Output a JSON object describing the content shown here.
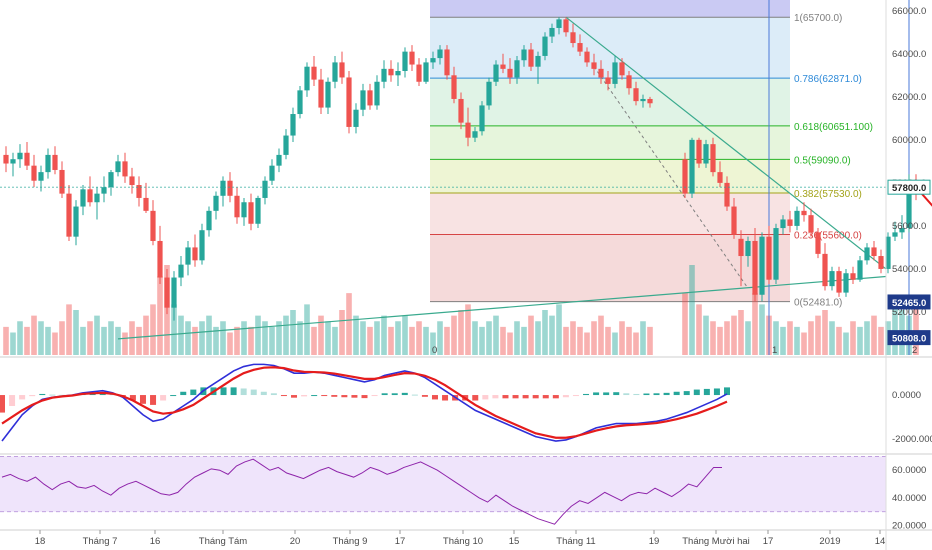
{
  "chart_data": [
    {
      "type": "candlestick",
      "panel": "price",
      "ylim": [
        50000,
        66500
      ],
      "y_ticks": [
        "66000.0",
        "64000.0",
        "62000.0",
        "60000.0",
        "58000.0",
        "56000.0",
        "54000.0",
        "52000.0"
      ],
      "price_tags": [
        {
          "label": "57800.0",
          "value": 57800,
          "style": "light"
        },
        {
          "label": "52465.0",
          "value": 52465,
          "style": "dark"
        },
        {
          "label": "50808.0",
          "value": 50808,
          "style": "dark"
        }
      ],
      "fibonacci": {
        "color_top": "#b3b3ee",
        "levels": [
          {
            "label": "1(65700.0)",
            "value": 65700,
            "color": "#7f7f7f",
            "fill": "#e6e6e6"
          },
          {
            "label": "0.786(62871.0)",
            "value": 62871,
            "color": "#2e8ad8",
            "fill": "#dcecf8"
          },
          {
            "label": "0.618(60651.100)",
            "value": 60651.1,
            "color": "#27b327",
            "fill": "#e0f3e6"
          },
          {
            "label": "0.5(59090.0)",
            "value": 59090,
            "color": "#27b327",
            "fill": "#e6f5dc"
          },
          {
            "label": "0.382(57530.0)",
            "value": 57530,
            "color": "#a3a31a",
            "fill": "#eef5d4"
          },
          {
            "label": "0.236(55600.0)",
            "value": 55600,
            "color": "#d64545",
            "fill": "#f8e3e3"
          },
          {
            "label": "0(52481.0)",
            "value": 52481,
            "color": "#7f7f7f",
            "fill": "#f5dada"
          }
        ]
      },
      "vertical_markers": [
        "1",
        "2",
        "3"
      ],
      "marker_zero_label": "0",
      "candles": [
        [
          59300,
          59700,
          58500,
          58900
        ],
        [
          58900,
          59400,
          58300,
          59100
        ],
        [
          59100,
          59800,
          58700,
          59400
        ],
        [
          59400,
          59900,
          58600,
          58800
        ],
        [
          58800,
          59300,
          57800,
          58100
        ],
        [
          58100,
          58800,
          57600,
          58500
        ],
        [
          58500,
          59600,
          58200,
          59300
        ],
        [
          59300,
          59700,
          58400,
          58600
        ],
        [
          58600,
          59000,
          57300,
          57500
        ],
        [
          57500,
          57900,
          55300,
          55500
        ],
        [
          55500,
          57200,
          55100,
          56900
        ],
        [
          56900,
          57900,
          56500,
          57700
        ],
        [
          57700,
          58300,
          56900,
          57100
        ],
        [
          57100,
          57800,
          56300,
          57500
        ],
        [
          57500,
          58300,
          57100,
          57800
        ],
        [
          57800,
          58600,
          57400,
          58500
        ],
        [
          58500,
          59300,
          58300,
          59000
        ],
        [
          59000,
          59400,
          58000,
          58300
        ],
        [
          58300,
          58700,
          57500,
          57900
        ],
        [
          57900,
          58300,
          56900,
          57300
        ],
        [
          57300,
          58000,
          56600,
          56700
        ],
        [
          56700,
          57200,
          55100,
          55300
        ],
        [
          55300,
          56000,
          53300,
          53600
        ],
        [
          53600,
          54000,
          51900,
          52200
        ],
        [
          52200,
          53900,
          51600,
          53600
        ],
        [
          53600,
          54600,
          53200,
          54200
        ],
        [
          54200,
          55300,
          53700,
          55000
        ],
        [
          55000,
          55600,
          54100,
          54400
        ],
        [
          54400,
          56100,
          54200,
          55800
        ],
        [
          55800,
          56900,
          55500,
          56700
        ],
        [
          56700,
          57600,
          56300,
          57400
        ],
        [
          57400,
          58300,
          56900,
          58100
        ],
        [
          58100,
          58500,
          57100,
          57400
        ],
        [
          57400,
          57800,
          56100,
          56400
        ],
        [
          56400,
          57300,
          56000,
          57100
        ],
        [
          57100,
          57500,
          55800,
          56100
        ],
        [
          56100,
          57400,
          55900,
          57300
        ],
        [
          57300,
          58300,
          57000,
          58100
        ],
        [
          58100,
          59100,
          57900,
          58800
        ],
        [
          58800,
          59600,
          58500,
          59300
        ],
        [
          59300,
          60500,
          59100,
          60200
        ],
        [
          60200,
          61500,
          59900,
          61200
        ],
        [
          61200,
          62500,
          61000,
          62300
        ],
        [
          62300,
          63600,
          62000,
          63400
        ],
        [
          63400,
          63900,
          62500,
          62800
        ],
        [
          62800,
          63300,
          61200,
          61500
        ],
        [
          61500,
          62900,
          61200,
          62700
        ],
        [
          62700,
          63900,
          62400,
          63600
        ],
        [
          63600,
          64100,
          62600,
          62900
        ],
        [
          62900,
          63200,
          60300,
          60600
        ],
        [
          60600,
          61700,
          60300,
          61400
        ],
        [
          61400,
          62600,
          61100,
          62300
        ],
        [
          62300,
          62600,
          61400,
          61600
        ],
        [
          61600,
          63000,
          61400,
          62700
        ],
        [
          62700,
          63700,
          62400,
          63300
        ],
        [
          63300,
          63700,
          62700,
          63000
        ],
        [
          63000,
          63600,
          62500,
          63200
        ],
        [
          63200,
          64300,
          62900,
          64100
        ],
        [
          64100,
          64400,
          63200,
          63500
        ],
        [
          63500,
          63800,
          62500,
          62700
        ],
        [
          62700,
          63800,
          62600,
          63600
        ],
        [
          63600,
          64100,
          63300,
          63800
        ],
        [
          63800,
          64400,
          63500,
          64200
        ],
        [
          64200,
          64400,
          62800,
          63000
        ],
        [
          63000,
          63400,
          61700,
          61900
        ],
        [
          61900,
          62200,
          60500,
          60800
        ],
        [
          60800,
          61500,
          59700,
          60100
        ],
        [
          60100,
          60600,
          59900,
          60400
        ],
        [
          60400,
          61800,
          60200,
          61600
        ],
        [
          61600,
          62900,
          61400,
          62700
        ],
        [
          62700,
          63700,
          62500,
          63500
        ],
        [
          63500,
          64000,
          63100,
          63300
        ],
        [
          63300,
          63800,
          62600,
          62900
        ],
        [
          62900,
          63900,
          62600,
          63700
        ],
        [
          63700,
          64400,
          63400,
          64200
        ],
        [
          64200,
          64500,
          63200,
          63400
        ],
        [
          63400,
          64100,
          62600,
          63900
        ],
        [
          63900,
          65000,
          63700,
          64800
        ],
        [
          64800,
          65400,
          64500,
          65200
        ],
        [
          65200,
          65700,
          64900,
          65600
        ],
        [
          65600,
          65700,
          64800,
          65000
        ],
        [
          65000,
          65400,
          64300,
          64500
        ],
        [
          64500,
          64900,
          63900,
          64100
        ],
        [
          64100,
          64300,
          63400,
          63600
        ],
        [
          63600,
          64000,
          63000,
          63300
        ],
        [
          63300,
          63700,
          62600,
          62900
        ],
        [
          62900,
          63200,
          62300,
          62600
        ],
        [
          62600,
          63900,
          62400,
          63600
        ],
        [
          63600,
          63800,
          62800,
          63000
        ],
        [
          63000,
          63200,
          62100,
          62400
        ],
        [
          62400,
          62700,
          61600,
          61800
        ],
        [
          61800,
          62100,
          61500,
          61900
        ],
        [
          61900,
          62000,
          61500,
          61700
        ],
        [
          null,
          null,
          null,
          null
        ],
        [
          null,
          null,
          null,
          null
        ],
        [
          null,
          null,
          null,
          null
        ],
        [
          null,
          null,
          null,
          null
        ],
        [
          59100,
          59400,
          57300,
          57500
        ],
        [
          57500,
          60100,
          57300,
          60000
        ],
        [
          60000,
          60100,
          58700,
          58900
        ],
        [
          58900,
          60000,
          58700,
          59800
        ],
        [
          59800,
          60100,
          58300,
          58500
        ],
        [
          58500,
          59000,
          57800,
          58000
        ],
        [
          58000,
          58300,
          56700,
          56900
        ],
        [
          56900,
          57300,
          55400,
          55600
        ],
        [
          55400,
          55800,
          53200,
          54600
        ],
        [
          54600,
          55500,
          54100,
          55300
        ],
        [
          55300,
          55900,
          52500,
          52800
        ],
        [
          52800,
          55700,
          52500,
          55500
        ],
        [
          55500,
          56000,
          53300,
          53500
        ],
        [
          53500,
          56100,
          53300,
          55900
        ],
        [
          55900,
          56500,
          55600,
          56300
        ],
        [
          56300,
          56700,
          55700,
          56000
        ],
        [
          56000,
          56900,
          55800,
          56700
        ],
        [
          56700,
          57100,
          56200,
          56500
        ],
        [
          56500,
          56800,
          55500,
          55700
        ],
        [
          55700,
          55900,
          54500,
          54700
        ],
        [
          54700,
          55200,
          53000,
          53200
        ],
        [
          53200,
          54100,
          53000,
          53900
        ],
        [
          53900,
          54100,
          52700,
          52900
        ],
        [
          52900,
          54000,
          52700,
          53800
        ],
        [
          53800,
          54100,
          53300,
          53500
        ],
        [
          53500,
          54600,
          53400,
          54400
        ],
        [
          54400,
          55200,
          54200,
          55000
        ],
        [
          55000,
          55300,
          54400,
          54600
        ],
        [
          54600,
          54900,
          53800,
          54000
        ],
        [
          54000,
          55700,
          53800,
          55500
        ],
        [
          55500,
          56200,
          55300,
          55700
        ],
        [
          55700,
          56500,
          55400,
          55900
        ],
        [
          55900,
          58400,
          55700,
          58100
        ],
        [
          58100,
          58400,
          57200,
          57500
        ]
      ],
      "gap_index_range": [
        93,
        96
      ],
      "volumes": [
        5,
        4,
        6,
        5,
        7,
        6,
        5,
        4,
        6,
        9,
        8,
        5,
        6,
        7,
        5,
        6,
        5,
        4,
        6,
        5,
        7,
        9,
        14,
        16,
        9,
        7,
        6,
        5,
        6,
        7,
        5,
        6,
        4,
        5,
        6,
        5,
        7,
        6,
        5,
        6,
        7,
        8,
        6,
        9,
        5,
        7,
        6,
        5,
        8,
        11,
        7,
        6,
        5,
        6,
        7,
        5,
        6,
        7,
        5,
        6,
        5,
        4,
        6,
        5,
        7,
        8,
        9,
        6,
        5,
        6,
        7,
        5,
        4,
        6,
        5,
        7,
        6,
        8,
        7,
        9,
        5,
        6,
        5,
        4,
        6,
        7,
        5,
        4,
        6,
        5,
        4,
        6,
        5,
        0,
        0,
        0,
        0,
        11,
        16,
        9,
        7,
        6,
        5,
        6,
        7,
        8,
        6,
        11,
        9,
        7,
        6,
        5,
        6,
        5,
        4,
        6,
        7,
        8,
        6,
        5,
        4,
        6,
        5,
        6,
        7,
        5,
        6,
        9,
        8,
        7,
        10
      ]
    },
    {
      "type": "macd",
      "panel": "macd",
      "ylim": [
        -2600,
        1600
      ],
      "y_ticks": [
        "0.0000",
        "-2000.0000"
      ],
      "macd": [
        -2100,
        -1500,
        -900,
        -500,
        -200,
        -100,
        -50,
        0,
        100,
        150,
        200,
        100,
        -100,
        -500,
        -900,
        -1200,
        -1100,
        -800,
        -500,
        -200,
        200,
        500,
        800,
        1100,
        1300,
        1400,
        1400,
        1350,
        1200,
        1000,
        1000,
        1050,
        1000,
        900,
        800,
        700,
        600,
        700,
        900,
        1000,
        1100,
        1000,
        800,
        500,
        200,
        -100,
        -400,
        -700,
        -900,
        -1100,
        -1300,
        -1500,
        -1700,
        -1900,
        -2000,
        -2100,
        -2050,
        -1900,
        -1700,
        -1500,
        -1400,
        -1300,
        -1300,
        -1300,
        -1250,
        -1200,
        -1100,
        -950,
        -800,
        -600,
        -400,
        -200,
        50
      ],
      "signal": [
        -1300,
        -1000,
        -700,
        -450,
        -250,
        -120,
        -60,
        -20,
        50,
        80,
        100,
        60,
        -50,
        -250,
        -500,
        -750,
        -850,
        -800,
        -650,
        -450,
        -150,
        150,
        450,
        750,
        1000,
        1150,
        1250,
        1270,
        1230,
        1120,
        1060,
        1050,
        1030,
        980,
        900,
        820,
        740,
        740,
        820,
        920,
        1000,
        980,
        880,
        700,
        450,
        150,
        -150,
        -450,
        -700,
        -950,
        -1150,
        -1350,
        -1550,
        -1750,
        -1850,
        -1950,
        -1950,
        -1880,
        -1750,
        -1620,
        -1520,
        -1430,
        -1380,
        -1350,
        -1320,
        -1280,
        -1200,
        -1100,
        -980,
        -850,
        -680,
        -500,
        -300
      ]
    },
    {
      "type": "line",
      "panel": "rsi",
      "ylim": [
        19000,
        71000
      ],
      "y_ticks": [
        "60.0000",
        "40.0000",
        "20.0000"
      ],
      "values": [
        55000,
        57000,
        54000,
        52000,
        55000,
        50000,
        46000,
        50000,
        52000,
        48000,
        47000,
        49000,
        45000,
        42000,
        47000,
        50000,
        52000,
        49000,
        46000,
        43000,
        42000,
        44000,
        50000,
        55000,
        58000,
        61000,
        60000,
        57000,
        63000,
        66000,
        68000,
        64000,
        60000,
        62000,
        58000,
        56000,
        54000,
        57000,
        60000,
        62000,
        59000,
        57000,
        55000,
        58000,
        62000,
        60000,
        57000,
        59000,
        62000,
        64000,
        66000,
        63000,
        60000,
        56000,
        52000,
        48000,
        44000,
        40000,
        37000,
        42000,
        38000,
        34000,
        31000,
        28000,
        25000,
        23000,
        21000,
        28000,
        34000,
        38000,
        36000,
        40000,
        44000,
        41000,
        38000,
        42000,
        44000,
        43000,
        47000,
        44000,
        41000,
        45000,
        50000,
        48000,
        55000,
        62000,
        62000
      ]
    }
  ],
  "time_axis_labels": [
    "18",
    "Tháng 7",
    "16",
    "Tháng Tám",
    "20",
    "Tháng 9",
    "17",
    "Tháng 10",
    "15",
    "Tháng 11",
    "19",
    "Tháng Mười hai",
    "17",
    "2019",
    "14"
  ],
  "colors": {
    "up": "#26a69a",
    "down": "#ef5350",
    "macd": "#2f2fd8",
    "signal": "#e51c1c",
    "rsi": "#8e24aa",
    "rsi_band": "#efe4fb",
    "trendline": "#3aaa8e",
    "marker": "#4a78d8",
    "arrow": "#e51c1c"
  }
}
